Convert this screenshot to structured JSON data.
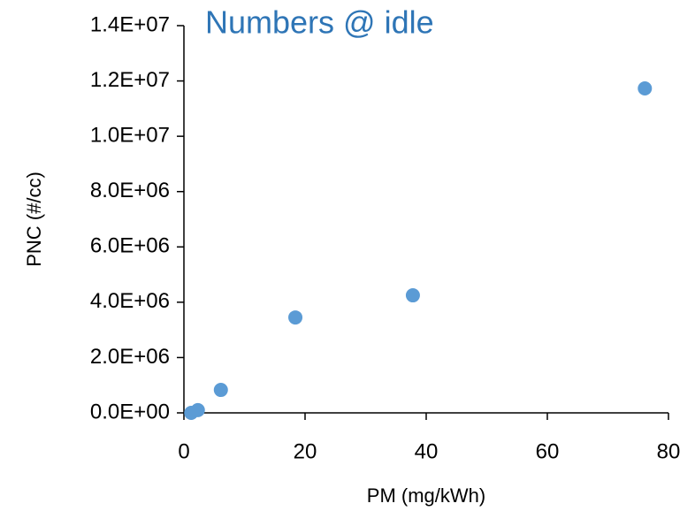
{
  "chart_data": {
    "type": "scatter",
    "title": "Numbers @ idle",
    "title_color": "#2e75b6",
    "x_label": "PM (mg/kWh)",
    "y_label": "PNC (#/cc)",
    "x": [
      1.2,
      2.3,
      6.1,
      18.4,
      37.8,
      76.1
    ],
    "values": [
      0,
      100000,
      830000,
      3450000,
      4250000,
      11730000
    ],
    "color": "#5b9bd5",
    "xlim": [
      0,
      80
    ],
    "xticks": [
      0,
      20,
      40,
      60,
      80
    ],
    "ylim": [
      0,
      14000000
    ],
    "yticks": [
      {
        "value": 0,
        "label": "0.0E+00"
      },
      {
        "value": 2000000,
        "label": "2.0E+06"
      },
      {
        "value": 4000000,
        "label": "4.0E+06"
      },
      {
        "value": 6000000,
        "label": "6.0E+06"
      },
      {
        "value": 8000000,
        "label": "8.0E+06"
      },
      {
        "value": 10000000,
        "label": "1.0E+07"
      },
      {
        "value": 12000000,
        "label": "1.2E+07"
      },
      {
        "value": 14000000,
        "label": "1.4E+07"
      }
    ],
    "grid": false
  }
}
